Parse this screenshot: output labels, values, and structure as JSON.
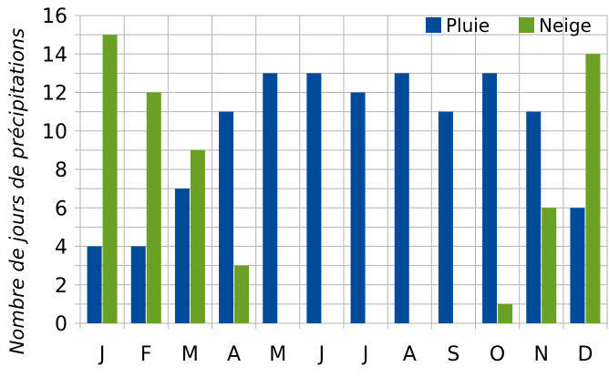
{
  "chart_data": {
    "type": "bar",
    "categories": [
      "J",
      "F",
      "M",
      "A",
      "M",
      "J",
      "J",
      "A",
      "S",
      "O",
      "N",
      "D"
    ],
    "series": [
      {
        "name": "Pluie",
        "color": "#004b99",
        "values": [
          4,
          4,
          7,
          11,
          13,
          13,
          12,
          13,
          11,
          13,
          11,
          6
        ]
      },
      {
        "name": "Neige",
        "color": "#6aa125",
        "values": [
          15,
          12,
          9,
          3,
          0,
          0,
          0,
          0,
          0,
          1,
          6,
          14
        ]
      }
    ],
    "title": "",
    "xlabel": "",
    "ylabel": "Nombre de jours de précipitations",
    "ylim": [
      0,
      16
    ],
    "yticks": [
      0,
      2,
      4,
      6,
      8,
      10,
      12,
      14,
      16
    ],
    "grid": true,
    "legend": "top-right"
  }
}
